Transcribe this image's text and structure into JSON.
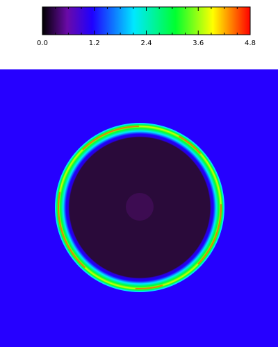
{
  "chart_data": {
    "type": "heatmap",
    "title": "",
    "xlabel": "",
    "ylabel": "",
    "colorbar": {
      "min": 0.0,
      "max": 4.8,
      "ticks": [
        "0.0",
        "1.2",
        "2.4",
        "3.6",
        "4.8"
      ],
      "tick_values": [
        0.0,
        1.2,
        2.4,
        3.6,
        4.8
      ],
      "colormap": "black-purple-blue-cyan-green-yellow-red",
      "stops": [
        "#000000",
        "#6a0aa8",
        "#1f00ff",
        "#00e8ff",
        "#00ff30",
        "#ffff00",
        "#ff0000"
      ],
      "placement": "top"
    },
    "field": {
      "shape": "circular-ring",
      "background_value": 1.0,
      "background_color": "#2600ff",
      "interior_value": 0.15,
      "interior_color": "#2a0a3a",
      "center_spot_value": 0.3,
      "center_spot_color": "#3d0c52",
      "ring_peak_value": 4.6,
      "ring_colors": [
        "#1f00ff",
        "#00e8ff",
        "#00ff30",
        "#d8ff00",
        "#ff2000"
      ]
    }
  }
}
